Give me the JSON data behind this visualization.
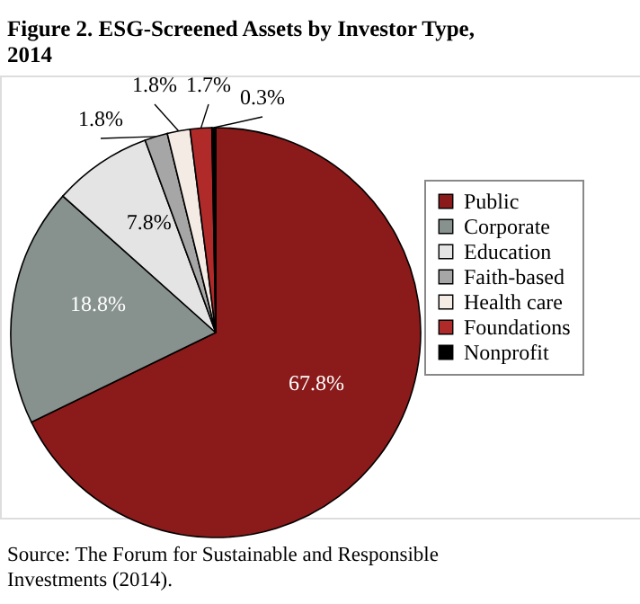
{
  "chart_data": {
    "type": "pie",
    "title": "Figure 2. ESG-Screened Assets by Investor Type, 2014",
    "categories": [
      "Public",
      "Corporate",
      "Education",
      "Faith-based",
      "Health care",
      "Foundations",
      "Nonprofit"
    ],
    "values": [
      67.8,
      18.8,
      7.8,
      1.8,
      1.8,
      1.7,
      0.3
    ],
    "value_labels": [
      "67.8%",
      "18.8%",
      "7.8%",
      "1.8%",
      "1.8%",
      "1.7%",
      "0.3%"
    ],
    "colors": [
      "#8b1a1a",
      "#87918d",
      "#e4e4e4",
      "#a6a6a6",
      "#f3ebe4",
      "#b02a2a",
      "#000000"
    ],
    "legend": "right",
    "annotations": [
      "Source: The Forum for Sustainable and Responsible Investments (2014)."
    ]
  }
}
